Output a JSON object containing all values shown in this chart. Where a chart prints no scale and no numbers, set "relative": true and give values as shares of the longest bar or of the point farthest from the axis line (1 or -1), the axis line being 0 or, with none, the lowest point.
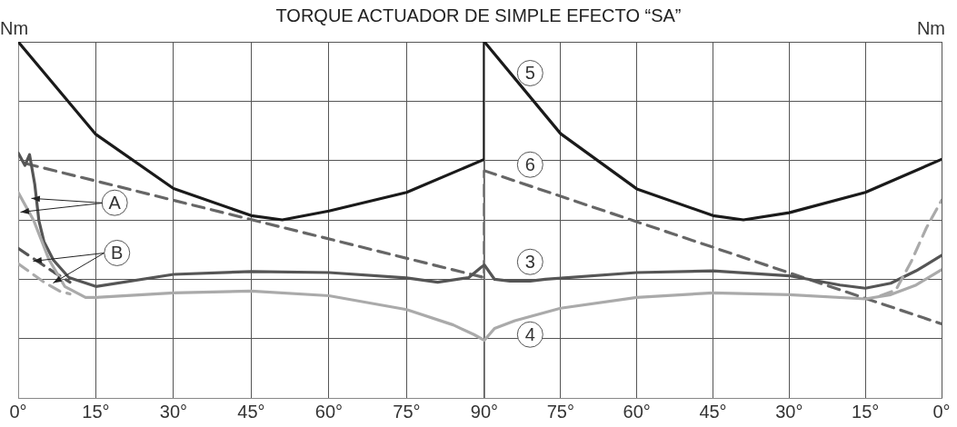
{
  "chart_data": [
    {
      "type": "line",
      "title": "TORQUE ACTUADOR DE SIMPLE EFECTO “SA”",
      "ylabel": "Nm",
      "relative": true,
      "grid": true,
      "legend": false,
      "xlim": [
        0,
        90
      ],
      "xticks": [
        {
          "value": 0,
          "label": "0°"
        },
        {
          "value": 15,
          "label": "15°"
        },
        {
          "value": 30,
          "label": "30°"
        },
        {
          "value": 45,
          "label": "45°"
        },
        {
          "value": 60,
          "label": "60°"
        },
        {
          "value": 75,
          "label": "75°"
        },
        {
          "value": 90,
          "label": "90°"
        }
      ],
      "series": [
        {
          "color": "#aaaaaa",
          "line_style": "solid",
          "x": [
            0,
            3,
            6,
            9,
            13,
            15,
            30,
            45,
            60,
            75,
            84,
            88,
            90
          ],
          "values": [
            0.577,
            0.498,
            0.387,
            0.313,
            0.282,
            0.282,
            0.295,
            0.3,
            0.287,
            0.248,
            0.205,
            0.178,
            0.162
          ]
        },
        {
          "color": "#aaaaaa",
          "line_style": "dashed",
          "x": [
            0,
            5,
            8,
            10
          ],
          "values": [
            0.377,
            0.325,
            0.3,
            0.292
          ]
        },
        {
          "color": "#555555",
          "line_style": "solid",
          "x": [
            0,
            1.3,
            2.2,
            3.2,
            4,
            5,
            6.8,
            9.8,
            15,
            30,
            45,
            60,
            75,
            81,
            87,
            89.5,
            90
          ],
          "values": [
            0.688,
            0.653,
            0.683,
            0.6,
            0.498,
            0.438,
            0.387,
            0.338,
            0.313,
            0.347,
            0.355,
            0.352,
            0.337,
            0.325,
            0.338,
            0.368,
            0.373
          ]
        },
        {
          "color": "#555555",
          "line_style": "dashed",
          "x": [
            0,
            7,
            10
          ],
          "values": [
            0.42,
            0.352,
            0.325
          ]
        },
        {
          "color": "#666666",
          "line_style": "dashed",
          "x": [
            1.5,
            90,
            90
          ],
          "values": [
            0.658,
            0.338,
            0.638
          ]
        },
        {
          "color": "#1a1a1a",
          "line_style": "solid",
          "x": [
            0,
            15,
            30,
            45,
            51,
            60,
            75,
            90,
            90
          ],
          "values": [
            1,
            0.74,
            0.588,
            0.512,
            0.5,
            0.525,
            0.577,
            0.67,
            1
          ]
        }
      ],
      "annotations": [
        "A",
        "B"
      ]
    },
    {
      "type": "line",
      "y2label": "Nm",
      "relative": true,
      "grid": true,
      "legend": false,
      "xlim": [
        90,
        0
      ],
      "xticks": [
        {
          "value": 90,
          "label": null
        },
        {
          "value": 75,
          "label": "75°"
        },
        {
          "value": 60,
          "label": "60°"
        },
        {
          "value": 45,
          "label": "45°"
        },
        {
          "value": 30,
          "label": "30°"
        },
        {
          "value": 15,
          "label": "15°"
        },
        {
          "value": 0,
          "label": "0°"
        }
      ],
      "series": [
        {
          "color": "#aaaaaa",
          "line_style": "solid",
          "x": [
            90,
            88,
            84,
            75,
            60,
            45,
            30,
            15,
            10,
            5,
            0
          ],
          "values": [
            0.162,
            0.195,
            0.217,
            0.252,
            0.282,
            0.295,
            0.29,
            0.278,
            0.29,
            0.317,
            0.36
          ]
        },
        {
          "color": "#aaaaaa",
          "line_style": "dashed",
          "x": [
            12,
            9,
            6,
            3,
            0
          ],
          "values": [
            0.287,
            0.303,
            0.382,
            0.477,
            0.555
          ]
        },
        {
          "color": "#555555",
          "line_style": "solid",
          "x": [
            90,
            88,
            85,
            81,
            78,
            60,
            45,
            30,
            20,
            15,
            10,
            5,
            0
          ],
          "values": [
            0.373,
            0.333,
            0.328,
            0.328,
            0.333,
            0.352,
            0.357,
            0.343,
            0.317,
            0.308,
            0.322,
            0.357,
            0.4
          ]
        },
        {
          "color": "#666666",
          "line_style": "dashed",
          "x": [
            90,
            0
          ],
          "values": [
            0.638,
            0.208
          ]
        },
        {
          "color": "#1a1a1a",
          "line_style": "solid",
          "x": [
            90,
            75,
            60,
            45,
            39,
            30,
            15,
            0
          ],
          "values": [
            1,
            0.742,
            0.587,
            0.512,
            0.5,
            0.52,
            0.577,
            0.67
          ]
        }
      ],
      "annotations": [
        "5",
        "6",
        "3",
        "4"
      ]
    }
  ]
}
